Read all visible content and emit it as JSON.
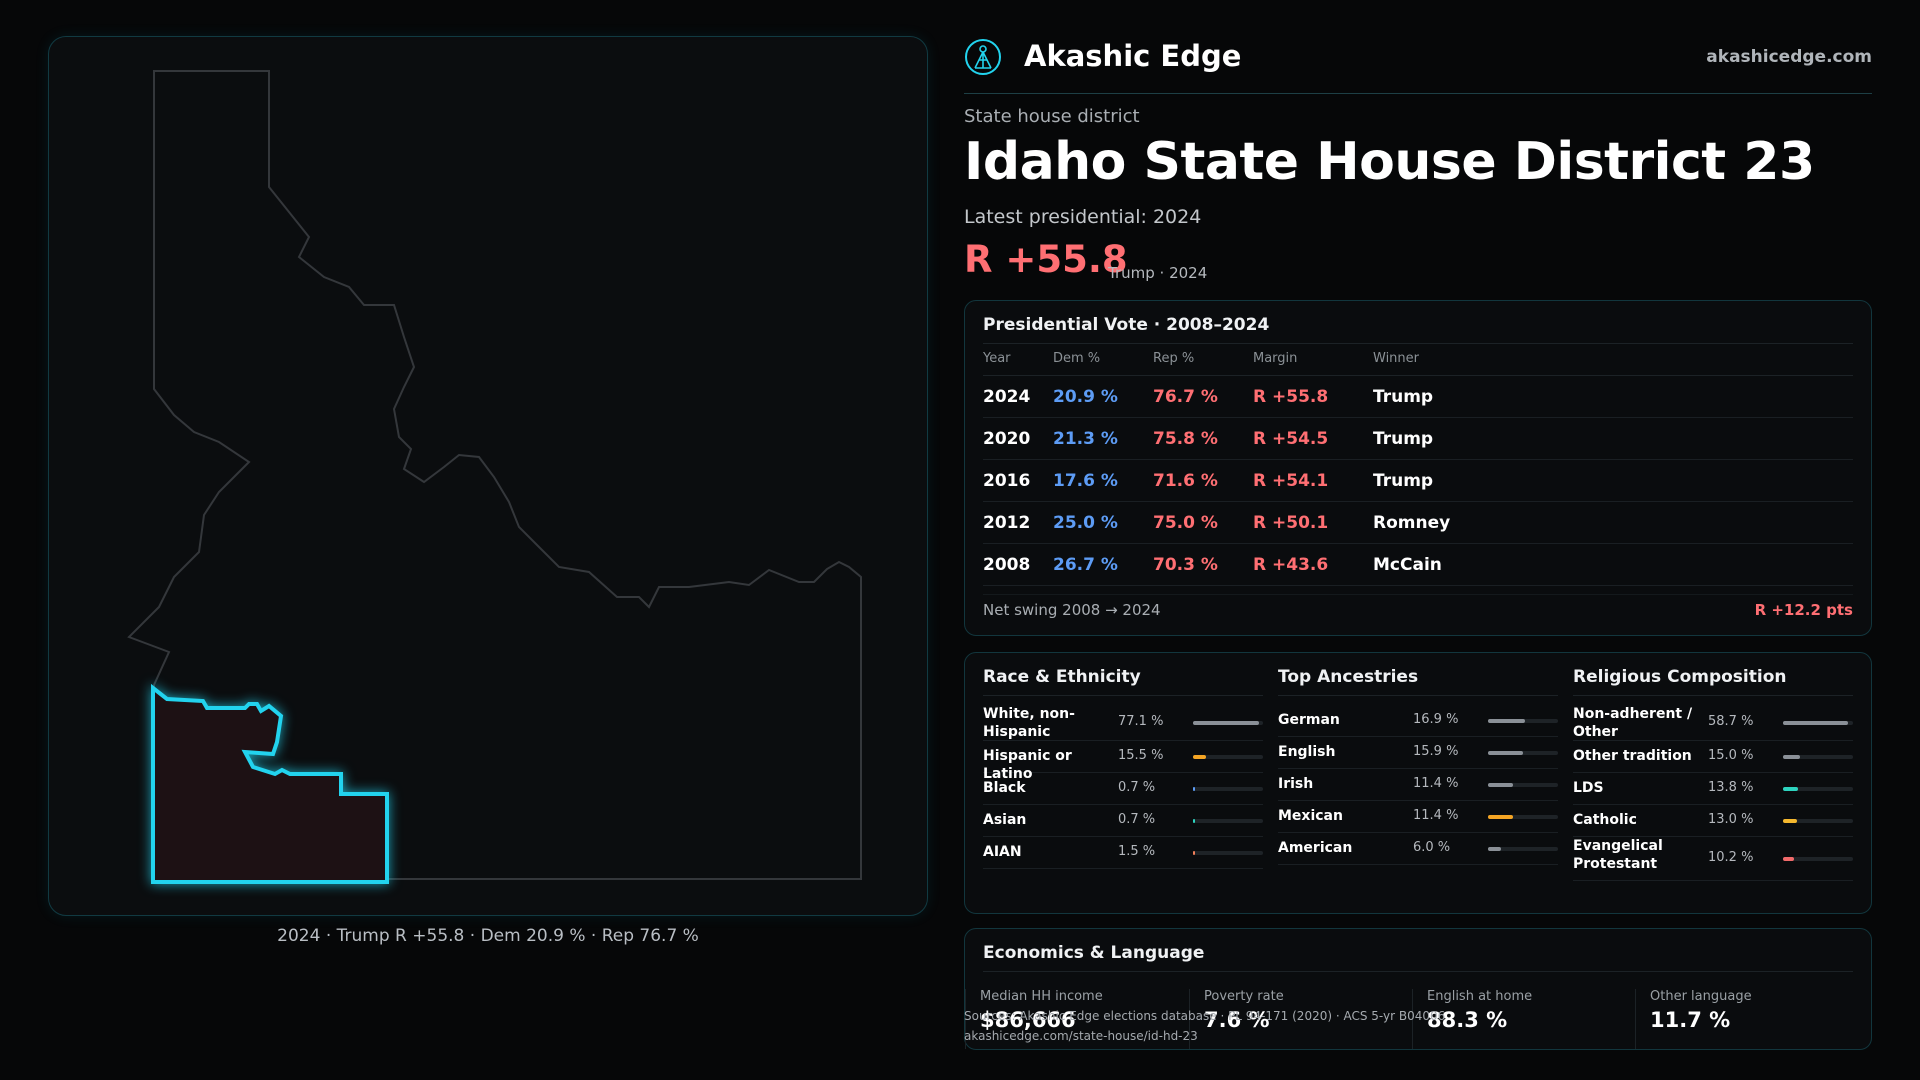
{
  "map": {
    "caption": "2024 · Trump R +55.8 · Dem 20.9 % · Rep 76.7 %",
    "colors": {
      "district_stroke": "#22d3ee",
      "district_fill": "#1d1114",
      "state_stroke": "#34373b"
    }
  },
  "header": {
    "brand": "Akashic Edge",
    "site": "akashicedge.com",
    "logo_icon": "akashic-edge-logo-icon"
  },
  "district": {
    "kicker": "State house district",
    "title": "Idaho State House District 23",
    "latest": "Latest presidential: 2024",
    "margin": "R +55.8",
    "margin_sub": "Trump · 2024"
  },
  "presidential": {
    "title": "Presidential Vote · 2008–2024",
    "columns": [
      "Year",
      "Dem %",
      "Rep %",
      "Margin",
      "Winner"
    ],
    "rows": [
      [
        "2024",
        "20.9 %",
        "76.7 %",
        "R +55.8",
        "Trump"
      ],
      [
        "2020",
        "21.3 %",
        "75.8 %",
        "R +54.5",
        "Trump"
      ],
      [
        "2016",
        "17.6 %",
        "71.6 %",
        "R +54.1",
        "Trump"
      ],
      [
        "2012",
        "25.0 %",
        "75.0 %",
        "R +50.1",
        "Romney"
      ],
      [
        "2008",
        "26.7 %",
        "70.3 %",
        "R +43.6",
        "McCain"
      ]
    ],
    "swing_label": "Net swing 2008 → 2024",
    "swing_value": "R +12.2 pts"
  },
  "demographics": [
    {
      "title": "Race & Ethnicity",
      "rows": [
        {
          "label": "White, non-Hispanic",
          "pct": "77.1 %",
          "value": 77.1,
          "color": "#8a9097"
        },
        {
          "label": "Hispanic or Latino",
          "pct": "15.5 %",
          "value": 15.5,
          "color": "#f5a524"
        },
        {
          "label": "Black",
          "pct": "0.7 %",
          "value": 0.7,
          "color": "#5d9cf5"
        },
        {
          "label": "Asian",
          "pct": "0.7 %",
          "value": 0.7,
          "color": "#2dd4bf"
        },
        {
          "label": "AIAN",
          "pct": "1.5 %",
          "value": 1.5,
          "color": "#f07f5a"
        }
      ]
    },
    {
      "title": "Top Ancestries",
      "rows": [
        {
          "label": "German",
          "pct": "16.9 %",
          "value": 16.9,
          "color": "#8a9097"
        },
        {
          "label": "English",
          "pct": "15.9 %",
          "value": 15.9,
          "color": "#8a9097"
        },
        {
          "label": "Irish",
          "pct": "11.4 %",
          "value": 11.4,
          "color": "#8a9097"
        },
        {
          "label": "Mexican",
          "pct": "11.4 %",
          "value": 11.4,
          "color": "#f5a524"
        },
        {
          "label": "American",
          "pct": "6.0 %",
          "value": 6.0,
          "color": "#8a9097"
        }
      ]
    },
    {
      "title": "Religious Composition",
      "rows": [
        {
          "label": "Non-adherent / Other",
          "pct": "58.7 %",
          "value": 58.7,
          "color": "#8a9097"
        },
        {
          "label": "Other tradition",
          "pct": "15.0 %",
          "value": 15.0,
          "color": "#8a9097"
        },
        {
          "label": "LDS",
          "pct": "13.8 %",
          "value": 13.8,
          "color": "#2dd4bf"
        },
        {
          "label": "Catholic",
          "pct": "13.0 %",
          "value": 13.0,
          "color": "#f5b82e"
        },
        {
          "label": "Evangelical Protestant",
          "pct": "10.2 %",
          "value": 10.2,
          "color": "#f26b6b"
        }
      ]
    }
  ],
  "economics": {
    "title": "Economics & Language",
    "cells": [
      {
        "label": "Median HH income",
        "value": "$86,666"
      },
      {
        "label": "Poverty rate",
        "value": "7.6 %"
      },
      {
        "label": "English at home",
        "value": "88.3 %"
      },
      {
        "label": "Other language",
        "value": "11.7 %"
      }
    ]
  },
  "sources": {
    "line1": "Sources: Akashic Edge elections database · PL 94-171 (2020) · ACS 5-yr B04006",
    "line2": "akashicedge.com/state-house/id-hd-23"
  }
}
